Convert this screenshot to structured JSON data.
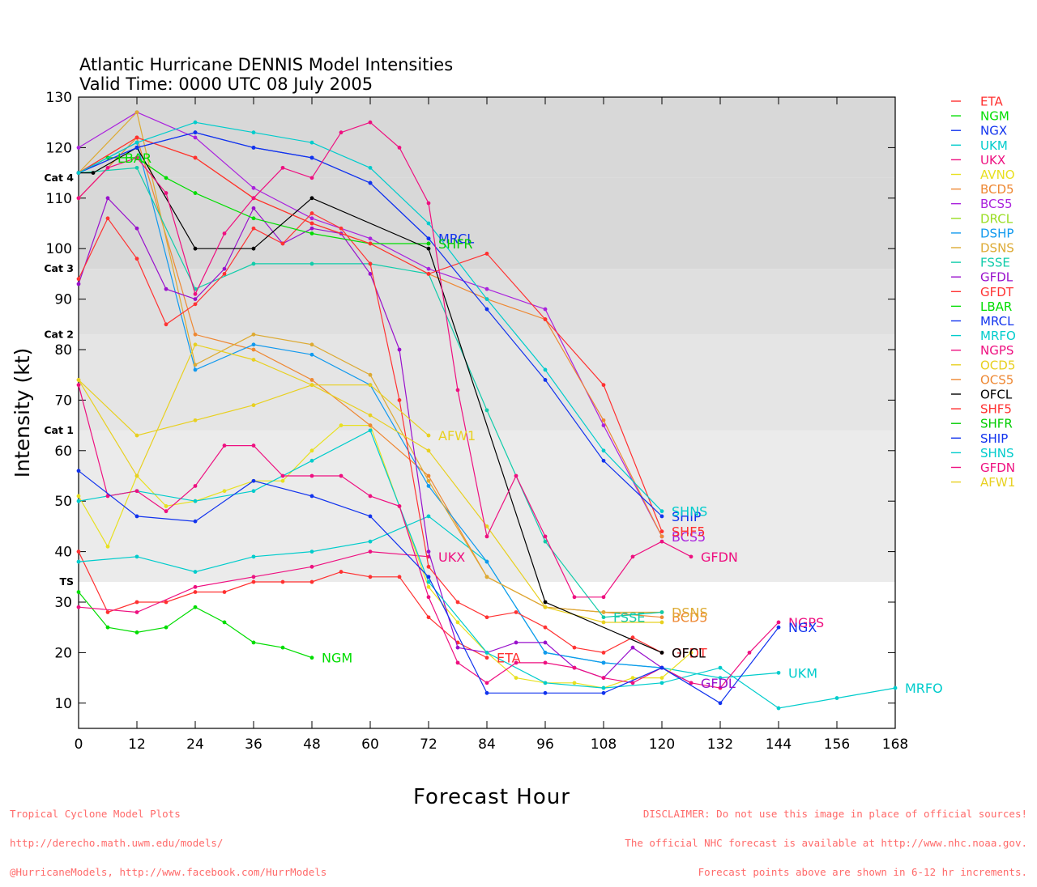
{
  "chart_data": {
    "type": "line",
    "title": "Atlantic Hurricane DENNIS Model Intensities",
    "subtitle": "Valid Time: 0000 UTC 08 July 2005",
    "xlabel": "Forecast Hour",
    "ylabel": "Intensity (kt)",
    "xlim": [
      0,
      168
    ],
    "ylim": [
      5,
      130
    ],
    "xticks": [
      0,
      12,
      24,
      36,
      48,
      60,
      72,
      84,
      96,
      108,
      120,
      132,
      144,
      156,
      168
    ],
    "yticks": [
      10,
      20,
      30,
      40,
      50,
      60,
      70,
      80,
      90,
      100,
      110,
      120,
      130
    ],
    "categories": [
      {
        "label": "TS",
        "value": 34,
        "shade": "#ebebeb"
      },
      {
        "label": "Cat 1",
        "value": 64,
        "shade": "#e5e5e5"
      },
      {
        "label": "Cat 2",
        "value": 83,
        "shade": "#dfdfdf"
      },
      {
        "label": "Cat 3",
        "value": 96,
        "shade": "#d8d8d8"
      },
      {
        "label": "Cat 4",
        "value": 114,
        "shade": "#d8d8d8"
      }
    ],
    "legend": [
      "ETA",
      "NGM",
      "NGX",
      "UKM",
      "UKX",
      "AVNO",
      "BCD5",
      "BCS5",
      "DRCL",
      "DSHP",
      "DSNS",
      "FSSE",
      "GFDL",
      "GFDT",
      "LBAR",
      "MRCL",
      "MRFO",
      "NGPS",
      "OCD5",
      "OCS5",
      "OFCL",
      "SHF5",
      "SHFR",
      "SHIP",
      "SHNS",
      "GFDN",
      "AFW1"
    ],
    "series": [
      {
        "name": "ETA",
        "color": "#ff3030",
        "label_at": 84,
        "x": [
          0,
          6,
          12,
          18,
          24,
          30,
          36,
          42,
          48,
          54,
          60,
          66,
          72,
          78,
          84
        ],
        "y": [
          40,
          28,
          30,
          30,
          32,
          32,
          34,
          34,
          34,
          36,
          35,
          35,
          27,
          22,
          19
        ]
      },
      {
        "name": "NGM",
        "color": "#00dd00",
        "label_at": 48,
        "x": [
          0,
          6,
          12,
          18,
          24,
          30,
          36,
          42,
          48
        ],
        "y": [
          32,
          25,
          24,
          25,
          29,
          26,
          22,
          21,
          19
        ]
      },
      {
        "name": "UKM",
        "color": "#00cccc",
        "label_at": 144,
        "x": [
          0,
          12,
          24,
          36,
          48,
          60,
          72,
          84,
          96,
          108,
          120,
          132,
          144
        ],
        "y": [
          38,
          39,
          36,
          39,
          40,
          42,
          47,
          38,
          20,
          18,
          17,
          15,
          16
        ]
      },
      {
        "name": "UKX",
        "color": "#ee1080",
        "label_at": 72,
        "x": [
          0,
          12,
          24,
          36,
          48,
          60,
          72
        ],
        "y": [
          29,
          28,
          33,
          35,
          37,
          40,
          39
        ]
      },
      {
        "name": "AVNO",
        "color": "#e8e020",
        "x": [
          0,
          6,
          12,
          18,
          24,
          30,
          36,
          42,
          48,
          54,
          60,
          66,
          72,
          78,
          84,
          90,
          96,
          102,
          108,
          114,
          120,
          126
        ],
        "y": [
          51,
          41,
          55,
          49,
          50,
          52,
          54,
          54,
          60,
          65,
          65,
          49,
          33,
          26,
          20,
          15,
          14,
          14,
          13,
          15,
          15,
          20
        ]
      },
      {
        "name": "BCD5",
        "color": "#ee8833",
        "label_at": 120,
        "x": [
          0,
          12,
          24,
          36,
          48,
          60,
          72,
          84,
          96,
          108,
          120
        ],
        "y": [
          110,
          122,
          83,
          80,
          74,
          65,
          55,
          35,
          29,
          28,
          27
        ]
      },
      {
        "name": "BCS5",
        "color": "#aa22dd",
        "label_at": 120,
        "x": [
          0,
          12,
          24,
          36,
          48,
          60,
          72,
          84,
          96,
          108,
          120
        ],
        "y": [
          120,
          127,
          122,
          112,
          106,
          102,
          96,
          92,
          88,
          65,
          43
        ]
      },
      {
        "name": "DSHP",
        "color": "#1199ee",
        "x": [
          0,
          12,
          24,
          36,
          48,
          60,
          72,
          84,
          96,
          108,
          120
        ],
        "y": [
          115,
          121,
          76,
          81,
          79,
          73,
          53,
          38,
          20,
          18,
          17
        ]
      },
      {
        "name": "DSNS",
        "color": "#ddaa33",
        "label_at": 120,
        "x": [
          0,
          12,
          24,
          36,
          48,
          60,
          72,
          84,
          96,
          108,
          120
        ],
        "y": [
          115,
          127,
          77,
          83,
          81,
          75,
          54,
          35,
          29,
          28,
          28
        ]
      },
      {
        "name": "FSSE",
        "color": "#11ccaa",
        "label_at": 108,
        "x": [
          0,
          12,
          24,
          36,
          48,
          60,
          72,
          84,
          96,
          108,
          120
        ],
        "y": [
          115,
          116,
          92,
          97,
          97,
          97,
          95,
          68,
          42,
          27,
          28
        ]
      },
      {
        "name": "GFDL",
        "color": "#9911cc",
        "label_at": 126,
        "x": [
          0,
          6,
          12,
          18,
          24,
          30,
          36,
          42,
          48,
          54,
          60,
          66,
          72,
          78,
          84,
          90,
          96,
          102,
          108,
          114,
          120,
          126
        ],
        "y": [
          93,
          110,
          104,
          92,
          90,
          96,
          108,
          101,
          104,
          103,
          95,
          80,
          40,
          21,
          20,
          22,
          22,
          17,
          15,
          21,
          17,
          14
        ]
      },
      {
        "name": "GFDT",
        "color": "#ff3333",
        "label_at": 126,
        "x": [
          0,
          6,
          12,
          18,
          24,
          30,
          36,
          42,
          48,
          54,
          60,
          66,
          72,
          78,
          84,
          90,
          96,
          102,
          108,
          114,
          120
        ],
        "y": [
          94,
          106,
          98,
          85,
          89,
          95,
          104,
          101,
          107,
          104,
          97,
          70,
          37,
          30,
          27,
          28,
          25,
          21,
          20,
          23,
          20
        ]
      },
      {
        "name": "LBAR",
        "color": "#00dd00",
        "label_at": 6,
        "x": [
          0,
          6,
          12,
          18,
          24,
          36,
          48,
          60,
          72
        ],
        "y": [
          115,
          118,
          118,
          114,
          111,
          106,
          103,
          101,
          101
        ]
      },
      {
        "name": "MRCL",
        "color": "#1133ee",
        "label_at": 72,
        "x": [
          0,
          12,
          24,
          36,
          48,
          60,
          72
        ],
        "y": [
          115,
          120,
          123,
          120,
          118,
          113,
          102
        ]
      },
      {
        "name": "MRFO",
        "color": "#00cccc",
        "label_at": 168,
        "x": [
          0,
          12,
          24,
          36,
          48,
          60,
          72,
          84,
          96,
          108,
          120,
          132,
          144,
          156,
          168
        ],
        "y": [
          50,
          52,
          50,
          52,
          58,
          64,
          34,
          20,
          14,
          13,
          14,
          17,
          9,
          11,
          13
        ]
      },
      {
        "name": "NGPS",
        "color": "#ee1080",
        "label_at": 144,
        "x": [
          0,
          6,
          12,
          18,
          24,
          30,
          36,
          42,
          48,
          54,
          60,
          66,
          72,
          78,
          84,
          90,
          96,
          102,
          108,
          114,
          120,
          126,
          132,
          138,
          144
        ],
        "y": [
          73,
          51,
          52,
          48,
          53,
          61,
          61,
          55,
          55,
          55,
          51,
          49,
          31,
          18,
          14,
          18,
          18,
          17,
          15,
          14,
          17,
          14,
          13,
          20,
          26
        ]
      },
      {
        "name": "OCD5",
        "color": "#e8d020",
        "x": [
          0,
          12,
          24,
          36,
          48,
          60,
          72,
          84,
          96,
          108,
          120
        ],
        "y": [
          74,
          55,
          81,
          78,
          73,
          67,
          60,
          45,
          29,
          26,
          26
        ]
      },
      {
        "name": "OCS5",
        "color": "#ee8833",
        "x": [
          0,
          12,
          24,
          36,
          48,
          60,
          72,
          84,
          96,
          108,
          120
        ],
        "y": [
          115,
          122,
          118,
          110,
          105,
          101,
          95,
          90,
          86,
          66,
          43
        ]
      },
      {
        "name": "OFCL",
        "color": "#000000",
        "label_at": 120,
        "x": [
          0,
          3,
          12,
          24,
          36,
          48,
          72,
          96,
          120
        ],
        "y": [
          115,
          115,
          120,
          100,
          100,
          110,
          100,
          30,
          20
        ]
      },
      {
        "name": "SHF5",
        "color": "#ff3030",
        "label_at": 120,
        "x": [
          0,
          12,
          24,
          36,
          48,
          60,
          72,
          84,
          96,
          108,
          120
        ],
        "y": [
          115,
          122,
          118,
          110,
          105,
          101,
          95,
          99,
          86,
          73,
          44
        ]
      },
      {
        "name": "SHFR",
        "color": "#00cc00",
        "label_at": 72,
        "x": [
          72
        ],
        "y": [
          101
        ]
      },
      {
        "name": "SHIP",
        "color": "#1133ee",
        "label_at": 120,
        "x": [
          0,
          12,
          24,
          36,
          48,
          60,
          72,
          84,
          96,
          108,
          120
        ],
        "y": [
          115,
          120,
          123,
          120,
          118,
          113,
          102,
          88,
          74,
          58,
          47
        ]
      },
      {
        "name": "SHNS",
        "color": "#00cccc",
        "label_at": 120,
        "x": [
          0,
          12,
          24,
          36,
          48,
          60,
          72,
          84,
          96,
          108,
          120
        ],
        "y": [
          115,
          121,
          125,
          123,
          121,
          116,
          105,
          90,
          76,
          60,
          48
        ]
      },
      {
        "name": "NGX",
        "color": "#1133ee",
        "label_at": 144,
        "x": [
          0,
          12,
          24,
          36,
          48,
          60,
          72,
          84,
          96,
          108,
          120,
          132,
          144
        ],
        "y": [
          56,
          47,
          46,
          54,
          51,
          47,
          35,
          12,
          12,
          12,
          17,
          10,
          25
        ]
      },
      {
        "name": "GFDN",
        "color": "#ee1080",
        "label_at": 126,
        "x": [
          0,
          6,
          12,
          18,
          24,
          30,
          36,
          42,
          48,
          54,
          60,
          66,
          72,
          78,
          84,
          90,
          96,
          102,
          108,
          114,
          120,
          126
        ],
        "y": [
          110,
          116,
          118,
          111,
          91,
          103,
          110,
          116,
          114,
          123,
          125,
          120,
          109,
          72,
          43,
          55,
          43,
          31,
          31,
          39,
          42,
          39
        ]
      },
      {
        "name": "AFW1",
        "color": "#e8d020",
        "label_at": 72,
        "x": [
          0,
          12,
          24,
          36,
          48,
          60,
          72
        ],
        "y": [
          74,
          63,
          66,
          69,
          73,
          73,
          63
        ]
      }
    ]
  },
  "footer": {
    "left": [
      "Tropical Cyclone Model Plots",
      "http://derecho.math.uwm.edu/models/",
      "@HurricaneModels, http://www.facebook.com/HurrModels"
    ],
    "right": [
      "DISCLAIMER: Do not use this image in place of official sources!",
      "The official NHC forecast is available at http://www.nhc.noaa.gov.",
      "Forecast points above are shown in 6-12 hr increments."
    ]
  }
}
